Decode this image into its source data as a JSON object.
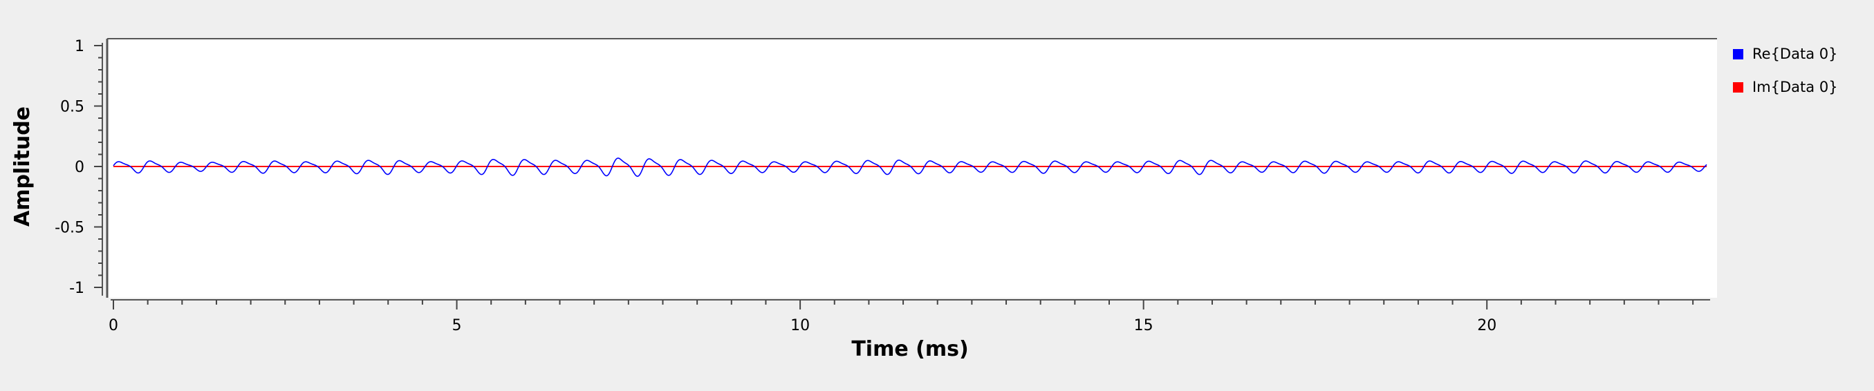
{
  "chart_data": {
    "type": "line",
    "xlabel": "Time (ms)",
    "ylabel": "Amplitude",
    "xlim": [
      0,
      23.2
    ],
    "ylim": [
      -1,
      1
    ],
    "x_ticks": [
      0,
      5,
      10,
      15,
      20
    ],
    "x_tick_labels": [
      "0",
      "5",
      "10",
      "15",
      "20"
    ],
    "y_ticks": [
      1,
      0.5,
      0,
      -0.5,
      -1
    ],
    "y_tick_labels": [
      "1",
      "0.5",
      "0",
      "-0.5",
      "-1"
    ],
    "grid": false,
    "legend_position": "right",
    "series": [
      {
        "name": "Re{Data 0}",
        "color": "#0000ff",
        "tone_frequency_khz": 2.2,
        "peaks": [
          0.05,
          0.06,
          0.04,
          0.05,
          0.06,
          0.05,
          0.06,
          0.07,
          0.05,
          0.06,
          0.08,
          0.07,
          0.06,
          0.09,
          0.08,
          0.07,
          0.06,
          0.05,
          0.05,
          0.06,
          0.07,
          0.06,
          0.05,
          0.05,
          0.06,
          0.05,
          0.05,
          0.06,
          0.07,
          0.05,
          0.05,
          0.06,
          0.05,
          0.05,
          0.06,
          0.05,
          0.06,
          0.05,
          0.06,
          0.05,
          0.05,
          0.04
        ]
      },
      {
        "name": "Im{Data 0}",
        "color": "#ff0000",
        "values_constant": 0
      }
    ]
  }
}
